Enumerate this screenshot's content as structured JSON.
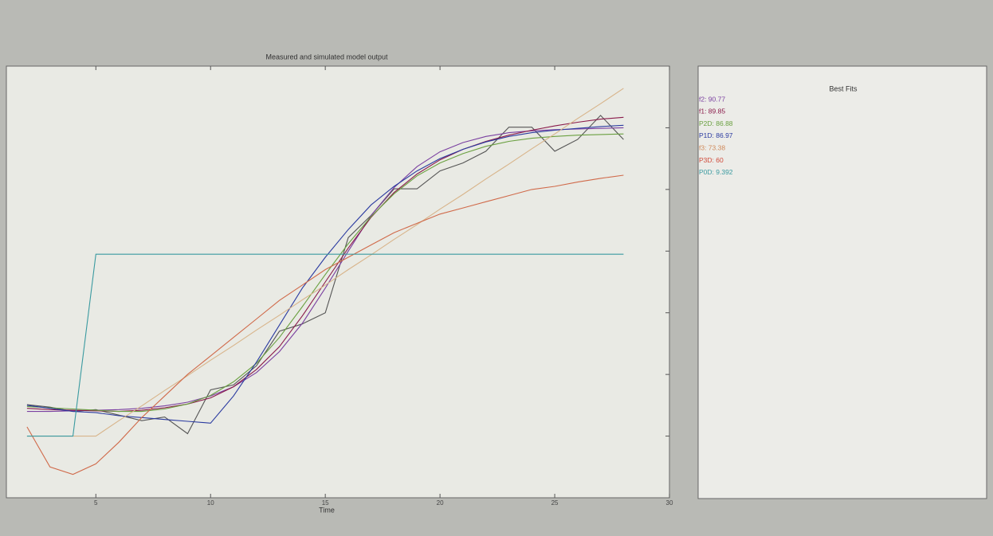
{
  "chart_data": {
    "type": "line",
    "title": "Measured and simulated model output",
    "x_label": "Time",
    "x": [
      2,
      3,
      4,
      5,
      6,
      7,
      8,
      9,
      10,
      11,
      12,
      13,
      14,
      15,
      16,
      17,
      18,
      19,
      20,
      21,
      22,
      23,
      24,
      25,
      26,
      27,
      28
    ],
    "xlim": [
      1.1,
      30
    ],
    "xticks": [
      5,
      10,
      15,
      20,
      25,
      30
    ],
    "ylim": [
      -1,
      6
    ],
    "yticks": [
      0,
      1,
      2,
      3,
      4,
      5
    ],
    "series": [
      {
        "color": "#555555",
        "values": [
          0.51,
          0.47,
          0.4,
          0.43,
          0.34,
          0.25,
          0.31,
          0.04,
          0.75,
          0.83,
          1.14,
          1.7,
          1.82,
          2.0,
          3.22,
          3.58,
          4.01,
          4.01,
          4.3,
          4.43,
          4.62,
          5.01,
          5.01,
          4.62,
          4.81,
          5.2,
          4.81
        ]
      },
      {
        "color": "#7a3fa0",
        "values": [
          0.4,
          0.4,
          0.41,
          0.42,
          0.43,
          0.45,
          0.49,
          0.55,
          0.65,
          0.8,
          1.03,
          1.37,
          1.83,
          2.4,
          3.0,
          3.58,
          4.03,
          4.37,
          4.61,
          4.76,
          4.86,
          4.92,
          4.95,
          4.97,
          4.98,
          4.99,
          5.0
        ]
      },
      {
        "color": "#8a1a4a",
        "values": [
          0.45,
          0.43,
          0.42,
          0.41,
          0.4,
          0.42,
          0.46,
          0.52,
          0.62,
          0.8,
          1.08,
          1.45,
          1.95,
          2.5,
          3.05,
          3.55,
          3.95,
          4.25,
          4.48,
          4.65,
          4.78,
          4.88,
          4.96,
          5.03,
          5.09,
          5.14,
          5.17
        ]
      },
      {
        "color": "#6aa040",
        "values": [
          0.48,
          0.46,
          0.44,
          0.42,
          0.4,
          0.4,
          0.44,
          0.52,
          0.66,
          0.88,
          1.18,
          1.6,
          2.1,
          2.62,
          3.12,
          3.56,
          3.93,
          4.22,
          4.43,
          4.58,
          4.7,
          4.78,
          4.83,
          4.86,
          4.88,
          4.89,
          4.9
        ]
      },
      {
        "color": "#2a3aa0",
        "values": [
          0.5,
          0.45,
          0.4,
          0.38,
          0.33,
          0.3,
          0.27,
          0.24,
          0.21,
          0.65,
          1.2,
          1.8,
          2.4,
          2.9,
          3.35,
          3.75,
          4.05,
          4.3,
          4.5,
          4.65,
          4.77,
          4.86,
          4.92,
          4.96,
          4.99,
          5.02,
          5.04
        ]
      },
      {
        "color": "#d8b48a",
        "values": [
          0,
          0,
          0,
          0,
          0.25,
          0.49,
          0.74,
          0.98,
          1.23,
          1.47,
          1.72,
          1.96,
          2.21,
          2.45,
          2.7,
          2.94,
          3.19,
          3.43,
          3.68,
          3.92,
          4.17,
          4.41,
          4.66,
          4.9,
          5.15,
          5.39,
          5.64
        ]
      },
      {
        "color": "#d06a4a",
        "values": [
          0.15,
          -0.5,
          -0.62,
          -0.45,
          -0.1,
          0.3,
          0.65,
          1.0,
          1.3,
          1.6,
          1.9,
          2.2,
          2.45,
          2.7,
          2.9,
          3.1,
          3.3,
          3.45,
          3.6,
          3.7,
          3.8,
          3.9,
          4.0,
          4.05,
          4.12,
          4.18,
          4.23
        ]
      },
      {
        "color": "#3a9aa0",
        "values": [
          0,
          0,
          0,
          2.95,
          2.95,
          2.95,
          2.95,
          2.95,
          2.95,
          2.95,
          2.95,
          2.95,
          2.95,
          2.95,
          2.95,
          2.95,
          2.95,
          2.95,
          2.95,
          2.95,
          2.95,
          2.95,
          2.95,
          2.95,
          2.95,
          2.95,
          2.95
        ]
      }
    ]
  },
  "best_fits": {
    "title": "Best Fits",
    "entries": [
      {
        "text": "f2: 90.77",
        "color": "#7a3fa0"
      },
      {
        "text": "f1: 89.85",
        "color": "#8a1a4a"
      },
      {
        "text": "P2D: 86.88",
        "color": "#6aa040"
      },
      {
        "text": "P1D: 86.97",
        "color": "#2a3aa0"
      },
      {
        "text": "f3: 73.38",
        "color": "#d08a5a"
      },
      {
        "text": "P3D: 60",
        "color": "#d04a3a"
      },
      {
        "text": "P0D: 9.392",
        "color": "#3a9aa0"
      }
    ]
  }
}
